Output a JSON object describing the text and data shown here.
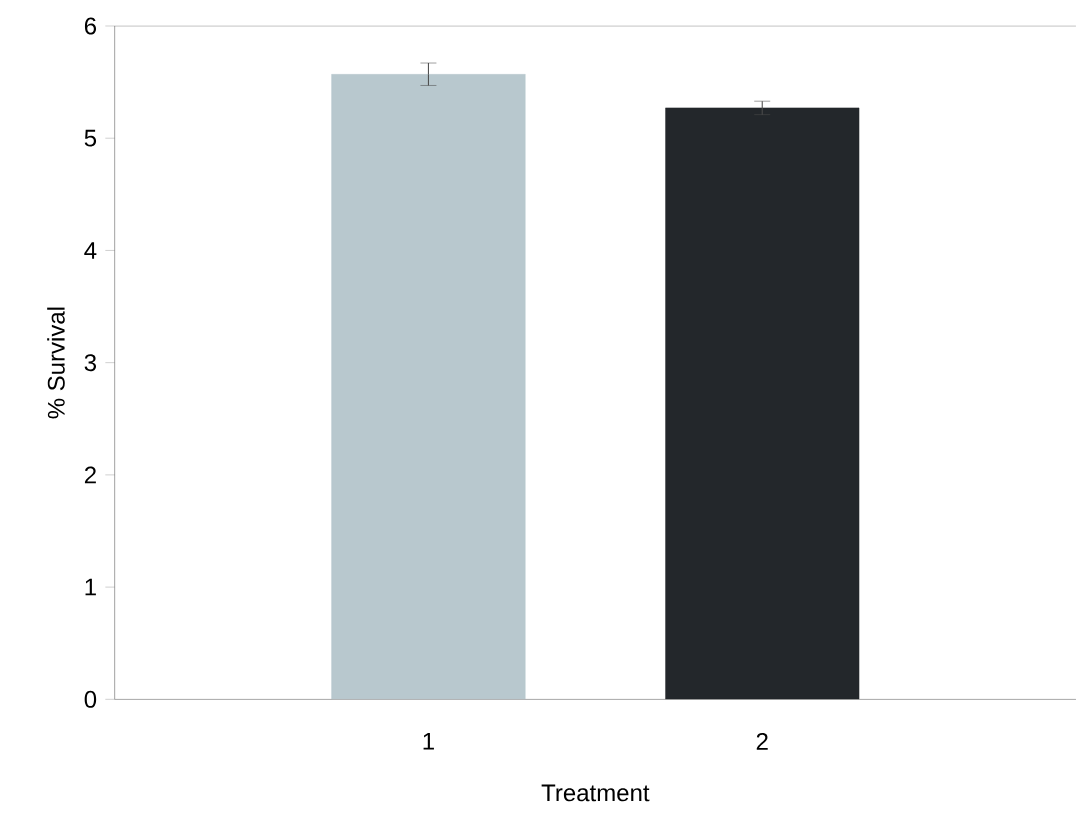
{
  "chart_data": {
    "type": "bar",
    "xlabel": "Treatment",
    "ylabel": "% Survival",
    "categories": [
      "1",
      "2"
    ],
    "values": [
      5.57,
      5.27
    ],
    "colors": [
      "#b8c8ce",
      "#23272b"
    ],
    "errors": [
      0.1,
      0.06
    ],
    "ylim": [
      0,
      6
    ],
    "yticks": [
      0,
      1,
      2,
      3,
      4,
      5,
      6
    ]
  }
}
